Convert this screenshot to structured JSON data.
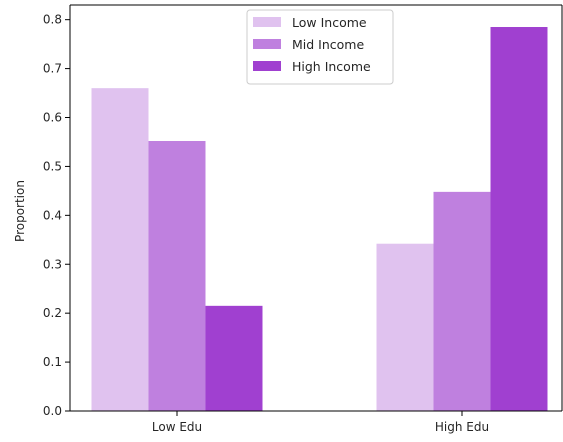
{
  "chart_data": {
    "type": "bar",
    "categories": [
      "Low Edu",
      "High Edu"
    ],
    "series": [
      {
        "name": "Low Income",
        "values": [
          0.66,
          0.342
        ],
        "color": "#e0c2ef"
      },
      {
        "name": "Mid Income",
        "values": [
          0.552,
          0.448
        ],
        "color": "#bf80df"
      },
      {
        "name": "High Income",
        "values": [
          0.215,
          0.785
        ],
        "color": "#a040d0"
      }
    ],
    "ylabel": "Proportion",
    "ylim": [
      0,
      0.83
    ],
    "yticks": [
      "0.0",
      "0.1",
      "0.2",
      "0.3",
      "0.4",
      "0.5",
      "0.6",
      "0.7",
      "0.8"
    ],
    "legend": {
      "placement": "top-center"
    },
    "grid": false
  }
}
